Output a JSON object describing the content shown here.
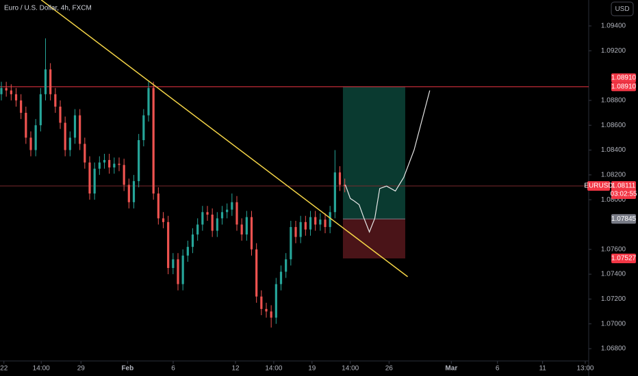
{
  "chart_data": {
    "type": "candlestick",
    "title": "Euro / U.S. Dollar, 4h, FXCM",
    "currency_button": "USD",
    "up_color": "#26a69a",
    "down_color": "#ef5350",
    "open": [
      1.0885,
      1.089,
      1.0888,
      1.0885,
      1.088,
      1.087,
      1.085,
      1.084,
      1.086,
      1.0885,
      1.0905,
      1.0885,
      1.0875,
      1.0862,
      1.084,
      1.085,
      1.0868,
      1.0845,
      1.083,
      1.0805,
      1.0825,
      1.083,
      1.0832,
      1.0826,
      1.0829,
      1.0828,
      1.0812,
      1.0798,
      1.0815,
      1.0848,
      1.0868,
      1.089,
      1.0805,
      1.0785,
      1.0782,
      1.0745,
      1.0752,
      1.0732,
      1.0755,
      1.0762,
      1.0772,
      1.078,
      1.079,
      1.0788,
      1.0775,
      1.0785,
      1.079,
      1.0792,
      1.0798,
      1.078,
      1.0772,
      1.0786,
      1.076,
      1.0722,
      1.0712,
      1.071,
      1.0705,
      1.0732,
      1.0742,
      1.0752,
      1.0778,
      1.077,
      1.0782,
      1.0776,
      1.0786,
      1.078,
      1.0784,
      1.0778,
      1.079,
      1.0822,
      1.0812
    ],
    "high": [
      1.0895,
      1.0895,
      1.0893,
      1.089,
      1.0885,
      1.0875,
      1.0855,
      1.0865,
      1.089,
      1.093,
      1.091,
      1.089,
      1.088,
      1.0867,
      1.0855,
      1.0873,
      1.0873,
      1.085,
      1.0835,
      1.083,
      1.0835,
      1.0837,
      1.0837,
      1.0834,
      1.0834,
      1.0833,
      1.0817,
      1.082,
      1.0853,
      1.0873,
      1.0895,
      1.0895,
      1.081,
      1.079,
      1.0787,
      1.0757,
      1.0757,
      1.076,
      1.0767,
      1.0777,
      1.0785,
      1.0795,
      1.0795,
      1.0793,
      1.079,
      1.0795,
      1.0797,
      1.0805,
      1.0803,
      1.0785,
      1.0791,
      1.0791,
      1.0765,
      1.0727,
      1.0717,
      1.0715,
      1.0737,
      1.0747,
      1.0757,
      1.0783,
      1.0783,
      1.0787,
      1.0787,
      1.0791,
      1.0791,
      1.0789,
      1.0789,
      1.0795,
      1.084,
      1.0827,
      1.0817
    ],
    "low": [
      1.088,
      1.0883,
      1.088,
      1.0875,
      1.0865,
      1.0845,
      1.0835,
      1.0835,
      1.0855,
      1.088,
      1.088,
      1.087,
      1.0857,
      1.0835,
      1.0835,
      1.0845,
      1.084,
      1.0825,
      1.08,
      1.08,
      1.082,
      1.0825,
      1.0821,
      1.0821,
      1.0823,
      1.0807,
      1.0793,
      1.0793,
      1.081,
      1.0843,
      1.0863,
      1.08,
      1.078,
      1.0777,
      1.074,
      1.074,
      1.0727,
      1.0727,
      1.075,
      1.0757,
      1.0767,
      1.0775,
      1.0783,
      1.077,
      1.077,
      1.078,
      1.0785,
      1.0787,
      1.0775,
      1.0767,
      1.0767,
      1.0755,
      1.0717,
      1.0707,
      1.0705,
      1.0697,
      1.07,
      1.0727,
      1.0737,
      1.0747,
      1.0765,
      1.0765,
      1.0771,
      1.0771,
      1.0775,
      1.0775,
      1.0773,
      1.0773,
      1.0785,
      1.0807,
      1.0806
    ],
    "close": [
      1.089,
      1.0888,
      1.0885,
      1.088,
      1.087,
      1.085,
      1.084,
      1.086,
      1.0885,
      1.0905,
      1.0885,
      1.0875,
      1.0862,
      1.084,
      1.085,
      1.0868,
      1.0845,
      1.083,
      1.0805,
      1.0825,
      1.083,
      1.0832,
      1.0826,
      1.0829,
      1.0828,
      1.0812,
      1.0798,
      1.0815,
      1.0848,
      1.0868,
      1.089,
      1.0805,
      1.0785,
      1.0782,
      1.0745,
      1.0752,
      1.0732,
      1.0755,
      1.0762,
      1.0772,
      1.078,
      1.079,
      1.0788,
      1.0775,
      1.0785,
      1.079,
      1.0792,
      1.0798,
      1.078,
      1.0772,
      1.0786,
      1.076,
      1.0722,
      1.0712,
      1.071,
      1.0705,
      1.0732,
      1.0742,
      1.0752,
      1.0778,
      1.077,
      1.0782,
      1.0776,
      1.0786,
      1.078,
      1.0784,
      1.0778,
      1.079,
      1.0822,
      1.0812,
      1.0811
    ],
    "xlim": [
      0,
      120
    ],
    "ylim": [
      1.06701,
      1.09609
    ],
    "xticks": [
      {
        "value": 0.8,
        "label": "22"
      },
      {
        "value": 8.4,
        "label": "14:00"
      },
      {
        "value": 16.5,
        "label": "29"
      },
      {
        "value": 26,
        "label": "Feb"
      },
      {
        "value": 35.3,
        "label": "6"
      },
      {
        "value": 48,
        "label": "12"
      },
      {
        "value": 55.8,
        "label": "14:00"
      },
      {
        "value": 63.6,
        "label": "19"
      },
      {
        "value": 71.4,
        "label": "14:00"
      },
      {
        "value": 79.3,
        "label": "26"
      },
      {
        "value": 92,
        "label": "Mar"
      },
      {
        "value": 101.4,
        "label": "6"
      },
      {
        "value": 110.6,
        "label": "11"
      },
      {
        "value": 119.3,
        "label": "13:00"
      }
    ],
    "yticks": [
      {
        "value": 1.094,
        "label": "1.09400"
      },
      {
        "value": 1.092,
        "label": "1.09200"
      },
      {
        "value": 1.088,
        "label": "1.08800"
      },
      {
        "value": 1.086,
        "label": "1.08600"
      },
      {
        "value": 1.084,
        "label": "1.08400"
      },
      {
        "value": 1.082,
        "label": "1.08200"
      },
      {
        "value": 1.08,
        "label": "1.08000"
      },
      {
        "value": 1.076,
        "label": "1.07600"
      },
      {
        "value": 1.074,
        "label": "1.07400"
      },
      {
        "value": 1.072,
        "label": "1.07200"
      },
      {
        "value": 1.07,
        "label": "1.07000"
      },
      {
        "value": 1.068,
        "label": "1.06800"
      }
    ],
    "trendline": {
      "x": [
        8.4,
        83.1
      ],
      "y": [
        1.0961,
        1.0738
      ],
      "color": "#f5d547"
    },
    "hline": {
      "value": 1.0891,
      "labels": [
        "1.08910",
        "1.08910"
      ],
      "color": "#f23645"
    },
    "current_price": {
      "symbol": "EURUSD",
      "value": 1.08111,
      "label": "1.08111",
      "countdown": "03:02:55"
    },
    "position": {
      "x": [
        69.9,
        82.6
      ],
      "target": 1.0891,
      "entry": 1.07845,
      "stop": 1.07527,
      "entry_label": "1.07845",
      "stop_label": "1.07527"
    },
    "projection": {
      "x": [
        70.4,
        71.4,
        72.2,
        73.2,
        74.2,
        75.3,
        76.4,
        77.4,
        78.8,
        80.6,
        82.3,
        84.4,
        86.2,
        87.6
      ],
      "y": [
        1.0812,
        1.0801,
        1.0799,
        1.0796,
        1.0785,
        1.0774,
        1.0785,
        1.0809,
        1.0811,
        1.0807,
        1.0818,
        1.084,
        1.0867,
        1.0888
      ]
    }
  }
}
